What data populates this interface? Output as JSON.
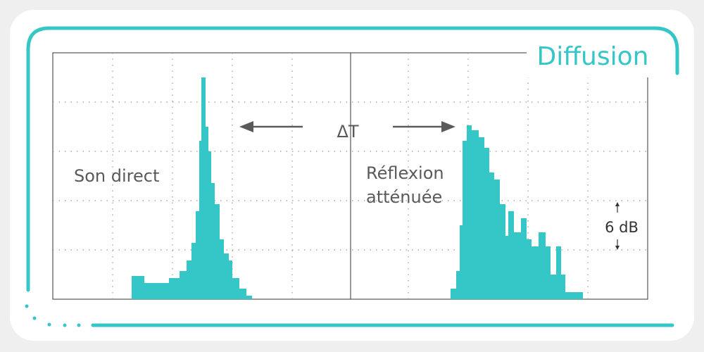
{
  "title": "Diffusion",
  "delta": "ΔT",
  "labels": {
    "direct": "Son direct",
    "reflection_line1": "Réflexion",
    "reflection_line2": "atténuée",
    "scale": "6 dB"
  }
}
